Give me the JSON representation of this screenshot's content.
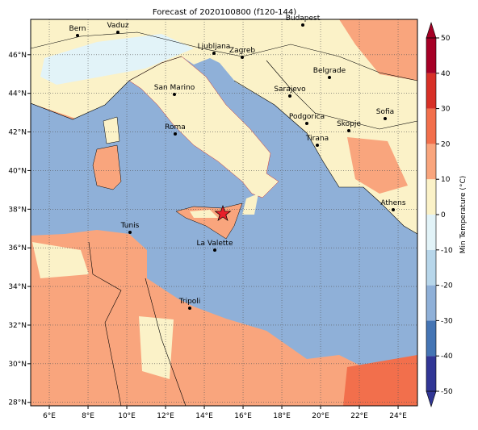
{
  "title": "Forecast of 2020100800 (f120-144)",
  "map": {
    "lon_ticks": [
      {
        "value": 6,
        "label": "6°E"
      },
      {
        "value": 8,
        "label": "8°E"
      },
      {
        "value": 10,
        "label": "10°E"
      },
      {
        "value": 12,
        "label": "12°E"
      },
      {
        "value": 14,
        "label": "14°E"
      },
      {
        "value": 16,
        "label": "16°E"
      },
      {
        "value": 18,
        "label": "18°E"
      },
      {
        "value": 20,
        "label": "20°E"
      },
      {
        "value": 22,
        "label": "22°E"
      },
      {
        "value": 24,
        "label": "24°E"
      }
    ],
    "lat_ticks": [
      {
        "value": 28,
        "label": "28°N"
      },
      {
        "value": 30,
        "label": "30°N"
      },
      {
        "value": 32,
        "label": "32°N"
      },
      {
        "value": 34,
        "label": "34°N"
      },
      {
        "value": 36,
        "label": "36°N"
      },
      {
        "value": 38,
        "label": "38°N"
      },
      {
        "value": 40,
        "label": "40°N"
      },
      {
        "value": 42,
        "label": "42°N"
      },
      {
        "value": 44,
        "label": "44°N"
      },
      {
        "value": 46,
        "label": "46°N"
      }
    ],
    "cities": [
      "Bern",
      "Vaduz",
      "Budapest",
      "Ljubljana",
      "Zagreb",
      "Belgrade",
      "San Marino",
      "Sarajevo",
      "Sofia",
      "Podgorica",
      "Skopje",
      "Roma",
      "Tirana",
      "Athens",
      "Tunis",
      "La Valette",
      "Tripoli"
    ]
  },
  "colorbar": {
    "label": "Min Temperature (°C)",
    "ticks": [
      -50,
      -40,
      -30,
      -20,
      -10,
      0,
      10,
      20,
      30,
      40,
      50
    ],
    "colors": [
      "#313695",
      "#4575b4",
      "#8fb0d8",
      "#b7d6ea",
      "#e2f3f8",
      "#fbf2c8",
      "#f9a57d",
      "#f26f4c",
      "#d73027",
      "#a50026"
    ]
  }
}
